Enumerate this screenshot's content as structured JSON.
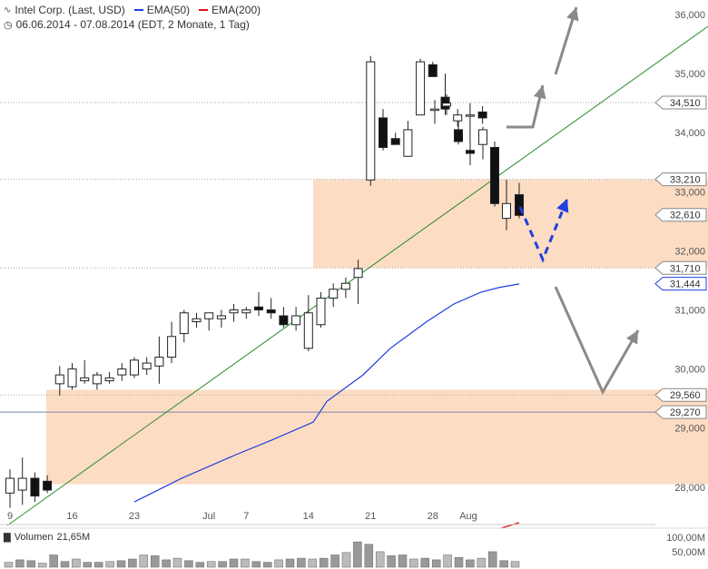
{
  "header": {
    "title": "Intel Corp. (Last, USD)",
    "period": "06.06.2014 - 07.08.2014 (EDT, 2 Monate, 1 Tag)",
    "ema50_label": "EMA(50)",
    "ema200_label": "EMA(200)",
    "ema50_color": "#1f3fe0",
    "ema200_color": "#e01010"
  },
  "volume": {
    "label": "Volumen",
    "value": "21,65M",
    "ticks": [
      "100,00M",
      "50,00M"
    ]
  },
  "chart_data": {
    "type": "candlestick",
    "ylim": [
      27.8,
      36.2
    ],
    "y_ticks": [
      {
        "v": 36,
        "label": "36,000"
      },
      {
        "v": 35,
        "label": "35,000"
      },
      {
        "v": 34,
        "label": "34,000"
      },
      {
        "v": 33,
        "label": "33,000"
      },
      {
        "v": 32,
        "label": "32,000"
      },
      {
        "v": 31,
        "label": "31,000"
      },
      {
        "v": 30,
        "label": "30,000"
      },
      {
        "v": 29,
        "label": "29,000"
      },
      {
        "v": 28,
        "label": "28,000"
      }
    ],
    "x_ticks": [
      {
        "i": 0,
        "label": "9"
      },
      {
        "i": 5,
        "label": "16"
      },
      {
        "i": 10,
        "label": "23"
      },
      {
        "i": 16,
        "label": "Jul"
      },
      {
        "i": 19,
        "label": "7"
      },
      {
        "i": 24,
        "label": "14"
      },
      {
        "i": 29,
        "label": "21"
      },
      {
        "i": 34,
        "label": "28"
      },
      {
        "i": 38,
        "label": "Aug"
      }
    ],
    "candles": [
      {
        "o": 27.9,
        "h": 28.3,
        "l": 27.65,
        "c": 28.15
      },
      {
        "o": 27.95,
        "h": 28.5,
        "l": 27.7,
        "c": 28.15
      },
      {
        "o": 28.15,
        "h": 28.25,
        "l": 27.75,
        "c": 27.85
      },
      {
        "o": 28.1,
        "h": 28.2,
        "l": 27.9,
        "c": 27.95
      },
      {
        "o": 29.75,
        "h": 30.05,
        "l": 29.55,
        "c": 29.9
      },
      {
        "o": 29.7,
        "h": 30.1,
        "l": 29.65,
        "c": 30.0
      },
      {
        "o": 29.8,
        "h": 30.15,
        "l": 29.75,
        "c": 29.85
      },
      {
        "o": 29.75,
        "h": 29.95,
        "l": 29.65,
        "c": 29.9
      },
      {
        "o": 29.8,
        "h": 29.95,
        "l": 29.75,
        "c": 29.85
      },
      {
        "o": 29.9,
        "h": 30.1,
        "l": 29.8,
        "c": 30.0
      },
      {
        "o": 29.9,
        "h": 30.2,
        "l": 29.85,
        "c": 30.15
      },
      {
        "o": 30.0,
        "h": 30.2,
        "l": 29.9,
        "c": 30.1
      },
      {
        "o": 30.05,
        "h": 30.55,
        "l": 29.75,
        "c": 30.2
      },
      {
        "o": 30.2,
        "h": 30.8,
        "l": 30.1,
        "c": 30.55
      },
      {
        "o": 30.6,
        "h": 31.0,
        "l": 30.45,
        "c": 30.95
      },
      {
        "o": 30.8,
        "h": 30.95,
        "l": 30.7,
        "c": 30.85
      },
      {
        "o": 30.85,
        "h": 30.95,
        "l": 30.65,
        "c": 30.95
      },
      {
        "o": 30.85,
        "h": 31.0,
        "l": 30.7,
        "c": 30.9
      },
      {
        "o": 30.95,
        "h": 31.1,
        "l": 30.8,
        "c": 31.0
      },
      {
        "o": 30.95,
        "h": 31.05,
        "l": 30.85,
        "c": 31.0
      },
      {
        "o": 31.05,
        "h": 31.3,
        "l": 30.9,
        "c": 31.0
      },
      {
        "o": 31.0,
        "h": 31.2,
        "l": 30.85,
        "c": 30.95
      },
      {
        "o": 30.9,
        "h": 31.05,
        "l": 30.7,
        "c": 30.75
      },
      {
        "o": 30.75,
        "h": 31.05,
        "l": 30.65,
        "c": 30.9
      },
      {
        "o": 30.35,
        "h": 31.25,
        "l": 30.3,
        "c": 30.95
      },
      {
        "o": 30.75,
        "h": 31.3,
        "l": 30.7,
        "c": 31.2
      },
      {
        "o": 31.2,
        "h": 31.45,
        "l": 31.05,
        "c": 31.35
      },
      {
        "o": 31.35,
        "h": 31.55,
        "l": 31.2,
        "c": 31.45
      },
      {
        "o": 31.55,
        "h": 31.85,
        "l": 31.1,
        "c": 31.7
      },
      {
        "o": 33.2,
        "h": 35.3,
        "l": 33.1,
        "c": 35.2
      },
      {
        "o": 34.25,
        "h": 34.4,
        "l": 33.7,
        "c": 33.75
      },
      {
        "o": 33.9,
        "h": 34.0,
        "l": 33.8,
        "c": 33.8
      },
      {
        "o": 33.6,
        "h": 34.2,
        "l": 33.6,
        "c": 34.05
      },
      {
        "o": 34.3,
        "h": 35.25,
        "l": 34.3,
        "c": 35.2
      },
      {
        "o": 35.15,
        "h": 35.2,
        "l": 34.95,
        "c": 34.95
      },
      {
        "o": 34.6,
        "h": 35.0,
        "l": 34.3,
        "c": 34.4
      },
      {
        "o": 34.2,
        "h": 34.4,
        "l": 34.1,
        "c": 34.3
      },
      {
        "o": 34.3,
        "h": 34.5,
        "l": 33.85,
        "c": 34.3
      },
      {
        "o": 34.35,
        "h": 34.45,
        "l": 34.15,
        "c": 34.25
      }
    ],
    "candle_x0": 11,
    "candle_dx": 13.7,
    "extra_candles": [
      {
        "x": 479,
        "o": 34.4,
        "h": 34.55,
        "l": 34.15,
        "c": 34.4
      },
      {
        "x": 492,
        "o": 34.45,
        "h": 34.65,
        "l": 34.3,
        "c": 34.5
      },
      {
        "x": 505,
        "o": 34.05,
        "h": 34.2,
        "l": 33.8,
        "c": 33.85
      },
      {
        "x": 518,
        "o": 33.7,
        "h": 33.85,
        "l": 33.45,
        "c": 33.65
      },
      {
        "x": 532,
        "o": 33.8,
        "h": 34.1,
        "l": 33.55,
        "c": 34.05
      },
      {
        "x": 545,
        "o": 33.75,
        "h": 33.85,
        "l": 32.75,
        "c": 32.8
      },
      {
        "x": 558,
        "o": 32.55,
        "h": 33.2,
        "l": 32.35,
        "c": 32.8
      },
      {
        "x": 572,
        "o": 32.95,
        "h": 33.15,
        "l": 32.55,
        "c": 32.6
      }
    ],
    "price_tags": [
      {
        "v": 34.51,
        "label": "34,510",
        "dotted": true
      },
      {
        "v": 33.21,
        "label": "33,210",
        "dotted": true
      },
      {
        "v": 32.61,
        "label": "32,610",
        "dotted": false
      },
      {
        "v": 31.71,
        "label": "31,710",
        "dotted": true
      },
      {
        "v": 31.444,
        "label": "31,444",
        "dotted": false,
        "accent": true
      },
      {
        "v": 29.56,
        "label": "29,560",
        "dotted": true
      },
      {
        "v": 29.27,
        "label": "29,270",
        "dotted": false,
        "solid_line": true
      }
    ],
    "zones": [
      {
        "from": 31.71,
        "to": 33.21
      },
      {
        "from": 28.05,
        "to": 29.65
      }
    ],
    "trendline": {
      "p1": [
        27.4
      ],
      "p2": [
        36.0
      ]
    },
    "ema50": [
      [
        148,
        27.75
      ],
      [
        200,
        28.15
      ],
      [
        260,
        28.55
      ],
      [
        300,
        28.8
      ],
      [
        345,
        29.1
      ],
      [
        360,
        29.45
      ],
      [
        400,
        29.9
      ],
      [
        430,
        30.35
      ],
      [
        470,
        30.8
      ],
      [
        500,
        31.1
      ],
      [
        530,
        31.3
      ],
      [
        550,
        31.38
      ],
      [
        572,
        31.44
      ]
    ],
    "volumes": [
      0.12,
      0.18,
      0.16,
      0.1,
      0.3,
      0.14,
      0.2,
      0.12,
      0.12,
      0.14,
      0.16,
      0.2,
      0.3,
      0.28,
      0.18,
      0.22,
      0.16,
      0.12,
      0.14,
      0.14,
      0.2,
      0.2,
      0.14,
      0.12,
      0.18,
      0.2,
      0.22,
      0.2,
      0.22,
      0.3,
      0.36,
      0.62,
      0.56,
      0.38,
      0.28,
      0.3,
      0.2,
      0.22,
      0.18,
      0.3,
      0.24,
      0.18,
      0.22,
      0.38,
      0.16,
      0.14
    ]
  }
}
